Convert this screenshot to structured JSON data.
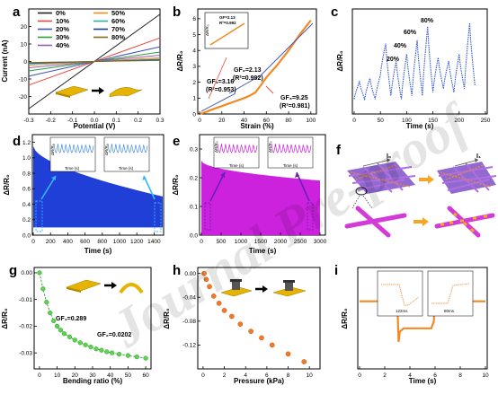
{
  "panels": {
    "a": {
      "label": "a",
      "xlabel": "Potential (V)",
      "ylabel": "Current (nA)",
      "xlim": [
        -0.3,
        0.3
      ],
      "ylim": [
        -30,
        30
      ],
      "xticks": [
        "-0.3",
        "-0.2",
        "-0.1",
        "0.0",
        "0.1",
        "0.2",
        "0.3"
      ],
      "yticks": [
        "-20",
        "-10",
        "0",
        "10",
        "20"
      ],
      "legend": [
        {
          "name": "0%",
          "color": "#222222",
          "slope": 90
        },
        {
          "name": "10%",
          "color": "#e8473b",
          "slope": 45
        },
        {
          "name": "20%",
          "color": "#3f51b5",
          "slope": 28
        },
        {
          "name": "30%",
          "color": "#2e9e3e",
          "slope": 18
        },
        {
          "name": "40%",
          "color": "#9b59b6",
          "slope": 12
        },
        {
          "name": "50%",
          "color": "#f08a24",
          "slope": 7
        },
        {
          "name": "60%",
          "color": "#2bb3b3",
          "slope": 4.5
        },
        {
          "name": "70%",
          "color": "#1f3a93",
          "slope": 3
        },
        {
          "name": "80%",
          "color": "#8b6b1f",
          "slope": 2
        }
      ]
    },
    "b": {
      "label": "b",
      "xlabel": "Strain (%)",
      "ylabel": "ΔR/R₀",
      "xticks": [
        "0",
        "20",
        "40",
        "60",
        "80",
        "100"
      ],
      "yticks": [
        "0",
        "1",
        "2",
        "3",
        "4",
        "5",
        "6"
      ],
      "inset": {
        "gf": "GF=2.13",
        "r2": "R²=0.992",
        "ylabel": "ΔR/R₀"
      },
      "annotations": [
        {
          "gf": "GF₁=3.16",
          "r2": "(R²=0.953)"
        },
        {
          "gf": "GF₂=2.13",
          "r2": "(R²=0.992)"
        },
        {
          "gf": "GF₃=9.25",
          "r2": "(R²=0.981)"
        }
      ]
    },
    "c": {
      "label": "c",
      "xlabel": "Time (s)",
      "ylabel": "ΔR/R₀",
      "xticks": [
        "0",
        "50",
        "100",
        "150",
        "200",
        "250"
      ],
      "annotations": [
        "20%",
        "40%",
        "60%",
        "80%"
      ]
    },
    "d": {
      "label": "d",
      "xlabel": "Time (s)",
      "ylabel": "ΔR/R₀",
      "xticks": [
        "0",
        "200",
        "400",
        "600",
        "800",
        "1000",
        "1200",
        "1400"
      ],
      "yticks": [
        "0.0",
        "0.2",
        "0.4",
        "0.6",
        "0.8",
        "1.0",
        "1.2"
      ],
      "inset_xlabel": "Time (s)",
      "inset_ylabel": "ΔR/R₀"
    },
    "e": {
      "label": "e",
      "xlabel": "Time (s)",
      "ylabel": "ΔR/R₀",
      "xticks": [
        "0",
        "500",
        "1000",
        "1500",
        "2000",
        "2500",
        "3000"
      ],
      "yticks": [
        "0.0",
        "0.1",
        "0.2",
        "0.3"
      ],
      "inset_xlabel": "Time (s)",
      "inset_ylabel": "ΔR/R₀"
    },
    "f": {
      "label": "f",
      "i0": "I₀",
      "i1": "I₁"
    },
    "g": {
      "label": "g",
      "xlabel": "Bending ratio (%)",
      "ylabel": "ΔR/R₀",
      "xticks": [
        "0",
        "10",
        "20",
        "30",
        "40",
        "50",
        "60"
      ],
      "yticks": [
        "0.00",
        "-0.01",
        "-0.02",
        "-0.03"
      ],
      "annotations": [
        {
          "text": "GF₁=0.289"
        },
        {
          "text": "GF₂=0.0202"
        }
      ]
    },
    "h": {
      "label": "h",
      "xlabel": "Pressure (kPa)",
      "ylabel": "ΔR/R₀",
      "xticks": [
        "0",
        "2",
        "4",
        "6",
        "8",
        "10"
      ],
      "yticks": [
        "0.00",
        "-0.04",
        "-0.08",
        "-0.12"
      ]
    },
    "i": {
      "label": "i",
      "xlabel": "Time (s)",
      "ylabel": "ΔR/R₀",
      "xticks": [
        "0",
        "2",
        "4",
        "6",
        "8",
        "10"
      ],
      "inset1": "122ms",
      "inset2": "80ms"
    }
  },
  "watermark": "Journal Pre-proof",
  "chart_data": [
    {
      "type": "line",
      "panel": "a",
      "title": "",
      "xlabel": "Potential (V)",
      "ylabel": "Current (nA)",
      "xlim": [
        -0.3,
        0.3
      ],
      "ylim": [
        -30,
        30
      ],
      "series": [
        {
          "name": "0%",
          "x": [
            -0.3,
            0.3
          ],
          "y": [
            -27,
            27
          ]
        },
        {
          "name": "10%",
          "x": [
            -0.3,
            0.3
          ],
          "y": [
            -13.5,
            13.5
          ]
        },
        {
          "name": "20%",
          "x": [
            -0.3,
            0.3
          ],
          "y": [
            -8.4,
            8.4
          ]
        },
        {
          "name": "30%",
          "x": [
            -0.3,
            0.3
          ],
          "y": [
            -5.4,
            5.4
          ]
        },
        {
          "name": "40%",
          "x": [
            -0.3,
            0.3
          ],
          "y": [
            -3.6,
            3.6
          ]
        },
        {
          "name": "50%",
          "x": [
            -0.3,
            0.3
          ],
          "y": [
            -2.1,
            2.1
          ]
        },
        {
          "name": "60%",
          "x": [
            -0.3,
            0.3
          ],
          "y": [
            -1.35,
            1.35
          ]
        },
        {
          "name": "70%",
          "x": [
            -0.3,
            0.3
          ],
          "y": [
            -0.9,
            0.9
          ]
        },
        {
          "name": "80%",
          "x": [
            -0.3,
            0.3
          ],
          "y": [
            -0.6,
            0.6
          ]
        }
      ]
    },
    {
      "type": "line",
      "panel": "b",
      "title": "",
      "xlabel": "Strain (%)",
      "ylabel": "ΔR/R₀",
      "xlim": [
        0,
        105
      ],
      "ylim": [
        0,
        6.5
      ],
      "series": [
        {
          "x": [
            0,
            5,
            10,
            20,
            30,
            40,
            45,
            50,
            55,
            60,
            70,
            80,
            90,
            100
          ],
          "y": [
            0,
            0.1,
            0.25,
            0.5,
            0.75,
            1.0,
            1.15,
            1.35,
            1.8,
            2.3,
            3.1,
            4.0,
            5.0,
            5.9
          ]
        }
      ]
    },
    {
      "type": "line",
      "panel": "c",
      "title": "",
      "xlabel": "Time (s)",
      "ylabel": "ΔR/R₀",
      "xlim": [
        0,
        250
      ],
      "series": [
        {
          "x": [
            0,
            10,
            20,
            30,
            40,
            50,
            60,
            70,
            80,
            90,
            100,
            110,
            120,
            130,
            140,
            150,
            160,
            170,
            180,
            190,
            200,
            210,
            220,
            230
          ],
          "y": [
            0.3,
            0.8,
            0.3,
            0.9,
            0.3,
            1.0,
            1.9,
            0.4,
            1.4,
            0.3,
            1.6,
            0.4,
            2.0,
            0.4,
            2.4,
            0.5,
            1.5,
            0.6,
            1.4,
            0.5,
            1.6,
            0.6,
            2.5,
            0.7
          ]
        }
      ]
    },
    {
      "type": "line",
      "panel": "d",
      "title": "",
      "xlabel": "Time (s)",
      "ylabel": "ΔR/R₀",
      "xlim": [
        0,
        1500
      ],
      "ylim": [
        0,
        1.3
      ],
      "series": [
        {
          "x": [
            0,
            1500
          ],
          "y_min": [
            0.1,
            0.1
          ],
          "y_max": [
            1.15,
            0.5
          ]
        }
      ]
    },
    {
      "type": "line",
      "panel": "e",
      "title": "",
      "xlabel": "Time (s)",
      "ylabel": "ΔR/R₀",
      "xlim": [
        0,
        3000
      ],
      "ylim": [
        0,
        0.35
      ],
      "series": [
        {
          "x": [
            0,
            3000
          ],
          "y_min": [
            0.0,
            0.0
          ],
          "y_max": [
            0.26,
            0.19
          ]
        }
      ]
    },
    {
      "type": "scatter",
      "panel": "g",
      "title": "",
      "xlabel": "Bending ratio (%)",
      "ylabel": "ΔR/R₀",
      "xlim": [
        -3,
        63
      ],
      "ylim": [
        -0.036,
        0.002
      ],
      "series": [
        {
          "x": [
            0,
            2,
            4,
            6,
            8,
            10,
            12,
            14,
            17,
            20,
            23,
            26,
            29,
            32,
            35,
            38,
            41,
            45,
            50,
            55,
            60
          ],
          "y": [
            0,
            -0.006,
            -0.011,
            -0.015,
            -0.018,
            -0.02,
            -0.0215,
            -0.0228,
            -0.024,
            -0.0252,
            -0.0262,
            -0.027,
            -0.0278,
            -0.0285,
            -0.029,
            -0.0296,
            -0.03,
            -0.0305,
            -0.031,
            -0.0315,
            -0.032
          ]
        }
      ]
    },
    {
      "type": "scatter",
      "panel": "h",
      "title": "",
      "xlabel": "Pressure (kPa)",
      "ylabel": "ΔR/R₀",
      "xlim": [
        -0.5,
        11
      ],
      "ylim": [
        -0.16,
        0.01
      ],
      "series": [
        {
          "x": [
            0.1,
            0.3,
            0.6,
            1.0,
            1.5,
            2.0,
            2.7,
            3.5,
            4.5,
            5.5,
            6.5,
            8.0,
            9.5
          ],
          "y": [
            0,
            -0.01,
            -0.022,
            -0.038,
            -0.05,
            -0.062,
            -0.072,
            -0.085,
            -0.097,
            -0.108,
            -0.12,
            -0.135,
            -0.148
          ]
        }
      ]
    },
    {
      "type": "line",
      "panel": "i",
      "title": "",
      "xlabel": "Time (s)",
      "ylabel": "ΔR/R₀",
      "xlim": [
        0,
        10
      ],
      "series": [
        {
          "x": [
            0,
            3.0,
            3.1,
            3.2,
            3.5,
            5.7,
            5.9,
            6.0,
            6.3,
            10
          ],
          "y": [
            0,
            0,
            -0.12,
            -0.09,
            -0.08,
            -0.08,
            -0.06,
            0.02,
            0.0,
            0.0
          ]
        }
      ]
    }
  ]
}
